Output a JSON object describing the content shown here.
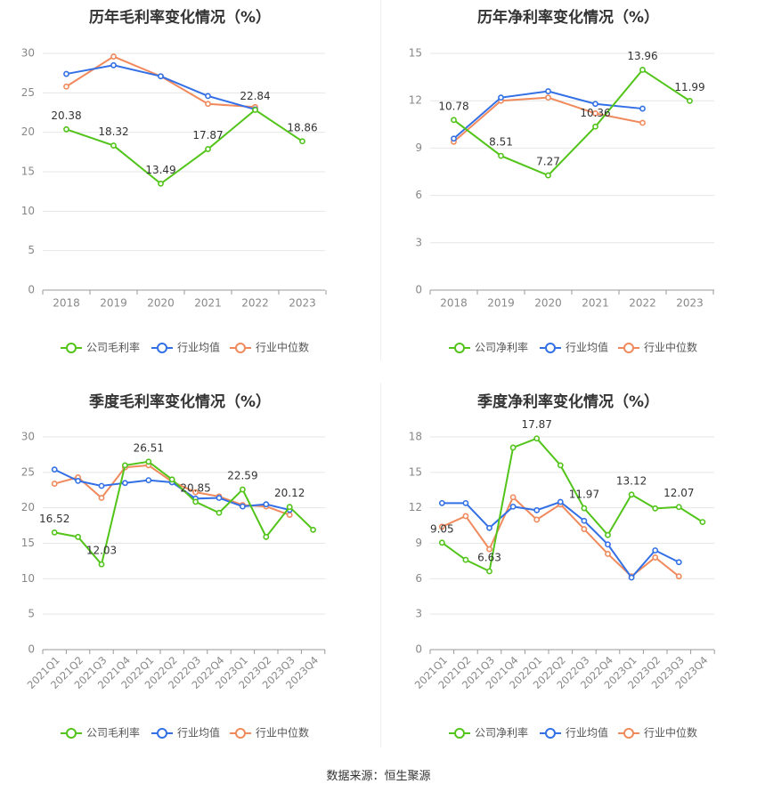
{
  "source_text": "数据来源：恒生聚源",
  "colors": {
    "company": "#52c41a",
    "avg": "#3370e6",
    "median": "#f08a5d"
  },
  "chart_data": [
    {
      "type": "line",
      "title": "历年毛利率变化情况（%）",
      "categories": [
        "2018",
        "2019",
        "2020",
        "2021",
        "2022",
        "2023"
      ],
      "ylim": [
        0,
        30
      ],
      "yticks": [
        0,
        5,
        10,
        15,
        20,
        25,
        30
      ],
      "legend": [
        "公司毛利率",
        "行业均值",
        "行业中位数"
      ],
      "series": [
        {
          "name": "公司毛利率",
          "values": [
            20.38,
            18.32,
            13.49,
            17.87,
            22.84,
            18.86
          ],
          "labels": [
            20.38,
            18.32,
            13.49,
            17.87,
            22.84,
            18.86
          ]
        },
        {
          "name": "行业均值",
          "values": [
            27.4,
            28.5,
            27.1,
            24.6,
            22.9,
            null
          ]
        },
        {
          "name": "行业中位数",
          "values": [
            25.8,
            29.6,
            27.1,
            23.6,
            23.2,
            null
          ]
        }
      ]
    },
    {
      "type": "line",
      "title": "历年净利率变化情况（%）",
      "categories": [
        "2018",
        "2019",
        "2020",
        "2021",
        "2022",
        "2023"
      ],
      "ylim": [
        0,
        15
      ],
      "yticks": [
        0,
        3,
        6,
        9,
        12,
        15
      ],
      "legend": [
        "公司净利率",
        "行业均值",
        "行业中位数"
      ],
      "series": [
        {
          "name": "公司净利率",
          "values": [
            10.78,
            8.51,
            7.27,
            10.36,
            13.96,
            11.99
          ],
          "labels": [
            10.78,
            8.51,
            7.27,
            10.36,
            13.96,
            11.99
          ]
        },
        {
          "name": "行业均值",
          "values": [
            9.6,
            12.2,
            12.6,
            11.8,
            11.5,
            null
          ]
        },
        {
          "name": "行业中位数",
          "values": [
            9.4,
            12.0,
            12.2,
            11.2,
            10.6,
            null
          ]
        }
      ]
    },
    {
      "type": "line",
      "title": "季度毛利率变化情况（%）",
      "categories": [
        "2021Q1",
        "2021Q2",
        "2021Q3",
        "2021Q4",
        "2022Q1",
        "2022Q2",
        "2022Q3",
        "2022Q4",
        "2023Q1",
        "2023Q2",
        "2023Q3",
        "2023Q4"
      ],
      "ylim": [
        0,
        30
      ],
      "yticks": [
        0,
        5,
        10,
        15,
        20,
        25,
        30
      ],
      "legend": [
        "公司毛利率",
        "行业均值",
        "行业中位数"
      ],
      "series": [
        {
          "name": "公司毛利率",
          "values": [
            16.52,
            15.9,
            12.03,
            26.0,
            26.51,
            24.0,
            20.85,
            19.3,
            22.59,
            15.9,
            20.12,
            16.9
          ],
          "labels": [
            16.52,
            null,
            12.03,
            null,
            26.51,
            null,
            20.85,
            null,
            22.59,
            null,
            20.12,
            null
          ]
        },
        {
          "name": "行业均值",
          "values": [
            25.4,
            23.8,
            23.1,
            23.5,
            23.9,
            23.6,
            21.3,
            21.4,
            20.2,
            20.5,
            19.7,
            null
          ]
        },
        {
          "name": "行业中位数",
          "values": [
            23.4,
            24.3,
            21.4,
            25.7,
            26.0,
            23.7,
            22.2,
            21.6,
            20.4,
            20.2,
            19.0,
            null
          ]
        }
      ]
    },
    {
      "type": "line",
      "title": "季度净利率变化情况（%）",
      "categories": [
        "2021Q1",
        "2021Q2",
        "2021Q3",
        "2021Q4",
        "2022Q1",
        "2022Q2",
        "2022Q3",
        "2022Q4",
        "2023Q1",
        "2023Q2",
        "2023Q3",
        "2023Q4"
      ],
      "ylim": [
        0,
        18
      ],
      "yticks": [
        0,
        3,
        6,
        9,
        12,
        15,
        18
      ],
      "legend": [
        "公司净利率",
        "行业均值",
        "行业中位数"
      ],
      "series": [
        {
          "name": "公司净利率",
          "values": [
            9.05,
            7.6,
            6.63,
            17.1,
            17.87,
            15.6,
            11.97,
            9.7,
            13.12,
            11.95,
            12.07,
            10.8
          ],
          "labels": [
            9.05,
            null,
            6.63,
            null,
            17.87,
            null,
            11.97,
            null,
            13.12,
            null,
            12.07,
            null
          ]
        },
        {
          "name": "行业均值",
          "values": [
            12.4,
            12.4,
            10.3,
            12.1,
            11.8,
            12.5,
            10.9,
            8.9,
            6.1,
            8.4,
            7.4,
            null
          ]
        },
        {
          "name": "行业中位数",
          "values": [
            10.4,
            11.3,
            8.5,
            12.9,
            11.0,
            12.3,
            10.2,
            8.1,
            6.2,
            7.8,
            6.2,
            null
          ]
        }
      ]
    }
  ]
}
